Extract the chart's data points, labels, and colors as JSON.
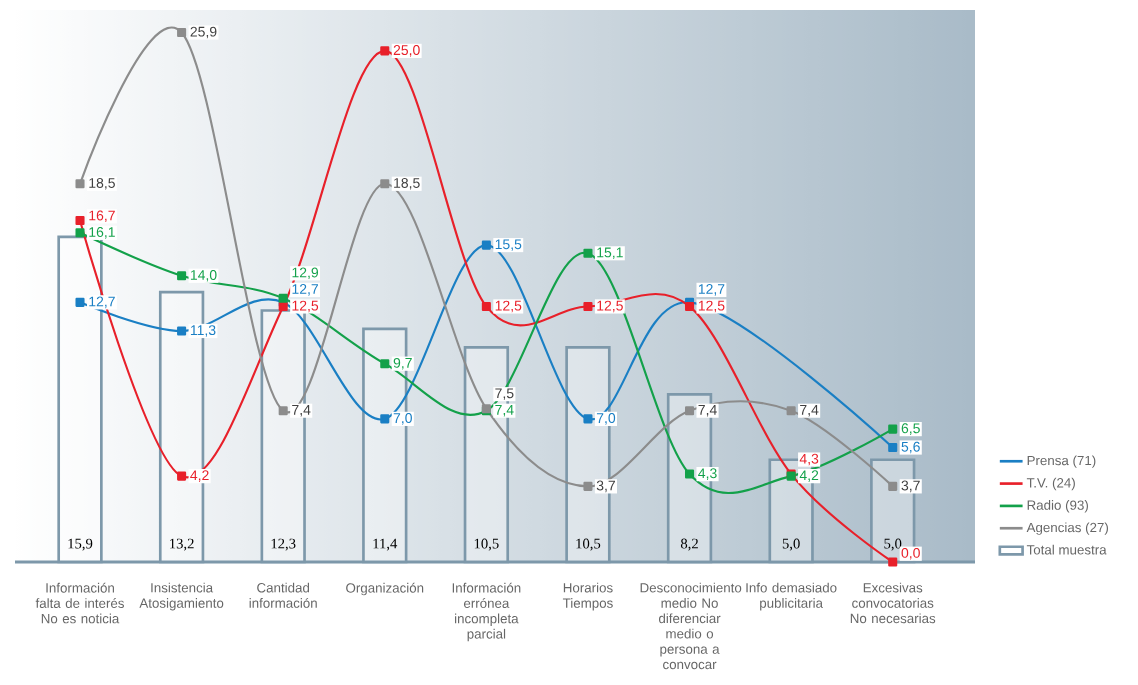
{
  "chart_data": {
    "type": "line",
    "categories": [
      "Información falta de interés No es noticia",
      "Insistencia Atosigamiento",
      "Cantidad información",
      "Organización",
      "Información errónea incompleta parcial",
      "Horarios Tiempos",
      "Desconocimiento medio No diferenciar medio o persona a convocar",
      "Info demasiado publicitaria",
      "Excesivas convocatorias No necesarias"
    ],
    "series": [
      {
        "name": "Total muestra",
        "type": "bar",
        "color": "#7d98aa",
        "values": [
          15.9,
          13.2,
          12.3,
          11.4,
          10.5,
          10.5,
          8.2,
          5.0,
          5.0
        ],
        "value_labels": [
          "15,9",
          "13,2",
          "12,3",
          "11,4",
          "10,5",
          "10,5",
          "8,2",
          "5,0",
          "5,0"
        ]
      },
      {
        "name": "Prensa (71)",
        "color": "#1a7fc4",
        "values": [
          12.7,
          11.3,
          12.7,
          7.0,
          15.5,
          7.0,
          12.7,
          null,
          5.6
        ],
        "value_labels": [
          "12,7",
          "11,3",
          "12,7",
          "7,0",
          "15,5",
          "7,0",
          "12,7",
          null,
          "5,6"
        ]
      },
      {
        "name": "T.V. (24)",
        "color": "#e8202a",
        "values": [
          16.7,
          4.2,
          12.5,
          25.0,
          12.5,
          12.5,
          12.5,
          4.3,
          0.0
        ],
        "value_labels": [
          "16,7",
          "4,2",
          "12,5",
          "25,0",
          "12,5",
          "12,5",
          "12,5",
          "4,3",
          "0,0"
        ]
      },
      {
        "name": "Radio (93)",
        "color": "#13a14a",
        "values": [
          16.1,
          14.0,
          12.9,
          9.7,
          7.4,
          15.1,
          4.3,
          4.2,
          6.5
        ],
        "value_labels": [
          "16,1",
          "14,0",
          "12,9",
          "9,7",
          "7,4",
          "15,1",
          "4,3",
          "4,2",
          "6,5"
        ]
      },
      {
        "name": "Agencias (27)",
        "color": "#8c8c8c",
        "values": [
          18.5,
          25.9,
          7.4,
          18.5,
          7.5,
          3.7,
          7.4,
          7.4,
          3.7
        ],
        "value_labels": [
          "18,5",
          "25,9",
          "7,4",
          "18,5",
          "7,5",
          "3,7",
          "7,4",
          "7,4",
          "3,7"
        ]
      }
    ],
    "ylim": [
      0,
      27
    ],
    "tick_labels": "x",
    "legend": "right",
    "marker": "square",
    "line_style": "solid",
    "grid": false
  }
}
